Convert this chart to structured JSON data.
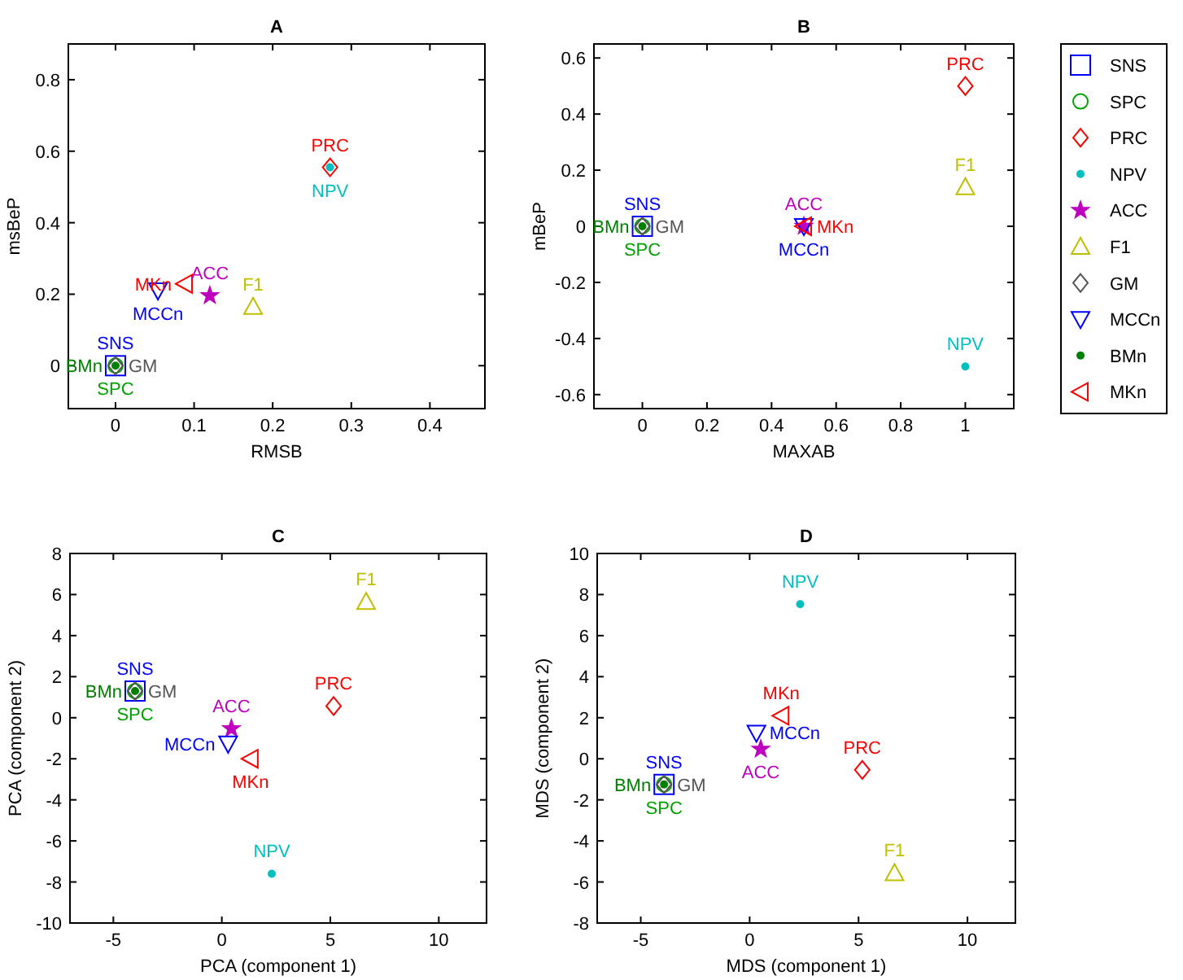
{
  "chart_data": [
    {
      "type": "scatter",
      "title": "A",
      "xlabel": "RMSB",
      "ylabel": "msBeP",
      "xlim": [
        -0.06,
        0.47
      ],
      "ylim": [
        -0.12,
        0.9
      ],
      "xticks": [
        0,
        0.1,
        0.2,
        0.3,
        0.4
      ],
      "yticks": [
        0,
        0.2,
        0.4,
        0.6,
        0.8
      ],
      "legend": false,
      "series": [
        {
          "name": "SNS",
          "color": "#0000ff",
          "marker": "square",
          "x": [
            0
          ],
          "values": [
            0
          ]
        },
        {
          "name": "SPC",
          "color": "#00a000",
          "marker": "circle",
          "x": [
            0
          ],
          "values": [
            0
          ]
        },
        {
          "name": "PRC",
          "color": "#ff0000",
          "marker": "diamond",
          "x": [
            0.273
          ],
          "values": [
            0.555
          ]
        },
        {
          "name": "NPV",
          "color": "#00bfbf",
          "marker": "dot",
          "x": [
            0.273
          ],
          "values": [
            0.555
          ]
        },
        {
          "name": "ACC",
          "color": "#bf00bf",
          "marker": "star",
          "x": [
            0.12
          ],
          "values": [
            0.196
          ]
        },
        {
          "name": "F1",
          "color": "#bfbf00",
          "marker": "triangle",
          "x": [
            0.175
          ],
          "values": [
            0.165
          ]
        },
        {
          "name": "GM",
          "color": "#555555",
          "marker": "diamond",
          "x": [
            0
          ],
          "values": [
            0
          ]
        },
        {
          "name": "MCCn",
          "color": "#0000ff",
          "marker": "triangle-down",
          "x": [
            0.054
          ],
          "values": [
            0.21
          ]
        },
        {
          "name": "BMn",
          "color": "#008000",
          "marker": "dot",
          "x": [
            0
          ],
          "values": [
            0
          ]
        },
        {
          "name": "MKn",
          "color": "#ff0000",
          "marker": "triangle-left",
          "x": [
            0.088
          ],
          "values": [
            0.229
          ]
        }
      ]
    },
    {
      "type": "scatter",
      "title": "B",
      "xlabel": "MAXAB",
      "ylabel": "mBeP",
      "xlim": [
        -0.15,
        1.15
      ],
      "ylim": [
        -0.65,
        0.65
      ],
      "xticks": [
        0,
        0.2,
        0.4,
        0.6,
        0.8,
        1
      ],
      "yticks": [
        -0.6,
        -0.4,
        -0.2,
        0,
        0.2,
        0.4,
        0.6
      ],
      "legend": "right",
      "series": [
        {
          "name": "SNS",
          "color": "#0000ff",
          "marker": "square",
          "x": [
            0
          ],
          "values": [
            0
          ]
        },
        {
          "name": "SPC",
          "color": "#00a000",
          "marker": "circle",
          "x": [
            0
          ],
          "values": [
            0
          ]
        },
        {
          "name": "PRC",
          "color": "#ff0000",
          "marker": "diamond",
          "x": [
            1
          ],
          "values": [
            0.5
          ]
        },
        {
          "name": "NPV",
          "color": "#00bfbf",
          "marker": "dot",
          "x": [
            1
          ],
          "values": [
            -0.5
          ]
        },
        {
          "name": "ACC",
          "color": "#bf00bf",
          "marker": "star",
          "x": [
            0.5
          ],
          "values": [
            0
          ]
        },
        {
          "name": "F1",
          "color": "#bfbf00",
          "marker": "triangle",
          "x": [
            1
          ],
          "values": [
            0.14
          ]
        },
        {
          "name": "GM",
          "color": "#555555",
          "marker": "diamond",
          "x": [
            0
          ],
          "values": [
            0
          ]
        },
        {
          "name": "MCCn",
          "color": "#0000ff",
          "marker": "triangle-down",
          "x": [
            0.5
          ],
          "values": [
            0
          ]
        },
        {
          "name": "BMn",
          "color": "#008000",
          "marker": "dot",
          "x": [
            0
          ],
          "values": [
            0
          ]
        },
        {
          "name": "MKn",
          "color": "#ff0000",
          "marker": "triangle-left",
          "x": [
            0.5
          ],
          "values": [
            0
          ]
        }
      ]
    },
    {
      "type": "scatter",
      "title": "C",
      "xlabel": "PCA (component 1)",
      "ylabel": "PCA (component 2)",
      "xlim": [
        -7,
        12.2
      ],
      "ylim": [
        -10,
        8
      ],
      "xticks": [
        -5,
        0,
        5,
        10
      ],
      "yticks": [
        -10,
        -8,
        -6,
        -4,
        -2,
        0,
        2,
        4,
        6,
        8
      ],
      "legend": false,
      "series": [
        {
          "name": "SNS",
          "color": "#0000ff",
          "marker": "square",
          "x": [
            -4
          ],
          "values": [
            1.3
          ]
        },
        {
          "name": "SPC",
          "color": "#00a000",
          "marker": "circle",
          "x": [
            -4
          ],
          "values": [
            1.3
          ]
        },
        {
          "name": "PRC",
          "color": "#ff0000",
          "marker": "diamond",
          "x": [
            5.15
          ],
          "values": [
            0.57
          ]
        },
        {
          "name": "NPV",
          "color": "#00bfbf",
          "marker": "dot",
          "x": [
            2.3
          ],
          "values": [
            -7.6
          ]
        },
        {
          "name": "ACC",
          "color": "#bf00bf",
          "marker": "star",
          "x": [
            0.44
          ],
          "values": [
            -0.53
          ]
        },
        {
          "name": "F1",
          "color": "#bfbf00",
          "marker": "triangle",
          "x": [
            6.65
          ],
          "values": [
            5.65
          ]
        },
        {
          "name": "GM",
          "color": "#555555",
          "marker": "diamond",
          "x": [
            -4
          ],
          "values": [
            1.3
          ]
        },
        {
          "name": "MCCn",
          "color": "#0000ff",
          "marker": "triangle-down",
          "x": [
            0.29
          ],
          "values": [
            -1.27
          ]
        },
        {
          "name": "BMn",
          "color": "#008000",
          "marker": "dot",
          "x": [
            -4
          ],
          "values": [
            1.3
          ]
        },
        {
          "name": "MKn",
          "color": "#ff0000",
          "marker": "triangle-left",
          "x": [
            1.32
          ],
          "values": [
            -2
          ]
        }
      ]
    },
    {
      "type": "scatter",
      "title": "D",
      "xlabel": "MDS (component 1)",
      "ylabel": "MDS (component 2)",
      "xlim": [
        -7,
        12.2
      ],
      "ylim": [
        -8,
        10
      ],
      "xticks": [
        -5,
        0,
        5,
        10
      ],
      "yticks": [
        -8,
        -6,
        -4,
        -2,
        0,
        2,
        4,
        6,
        8,
        10
      ],
      "legend": false,
      "series": [
        {
          "name": "SNS",
          "color": "#0000ff",
          "marker": "square",
          "x": [
            -3.93
          ],
          "values": [
            -1.25
          ]
        },
        {
          "name": "SPC",
          "color": "#00a000",
          "marker": "circle",
          "x": [
            -3.93
          ],
          "values": [
            -1.25
          ]
        },
        {
          "name": "PRC",
          "color": "#ff0000",
          "marker": "diamond",
          "x": [
            5.17
          ],
          "values": [
            -0.54
          ]
        },
        {
          "name": "NPV",
          "color": "#00bfbf",
          "marker": "dot",
          "x": [
            2.32
          ],
          "values": [
            7.53
          ]
        },
        {
          "name": "ACC",
          "color": "#bf00bf",
          "marker": "star",
          "x": [
            0.51
          ],
          "values": [
            0.47
          ]
        },
        {
          "name": "F1",
          "color": "#bfbf00",
          "marker": "triangle",
          "x": [
            6.65
          ],
          "values": [
            -5.56
          ]
        },
        {
          "name": "GM",
          "color": "#555555",
          "marker": "diamond",
          "x": [
            -3.93
          ],
          "values": [
            -1.25
          ]
        },
        {
          "name": "MCCn",
          "color": "#0000ff",
          "marker": "triangle-down",
          "x": [
            0.31
          ],
          "values": [
            1.26
          ]
        },
        {
          "name": "BMn",
          "color": "#008000",
          "marker": "dot",
          "x": [
            -3.93
          ],
          "values": [
            -1.25
          ]
        },
        {
          "name": "MKn",
          "color": "#ff0000",
          "marker": "triangle-left",
          "x": [
            1.45
          ],
          "values": [
            2.1
          ]
        }
      ]
    }
  ]
}
